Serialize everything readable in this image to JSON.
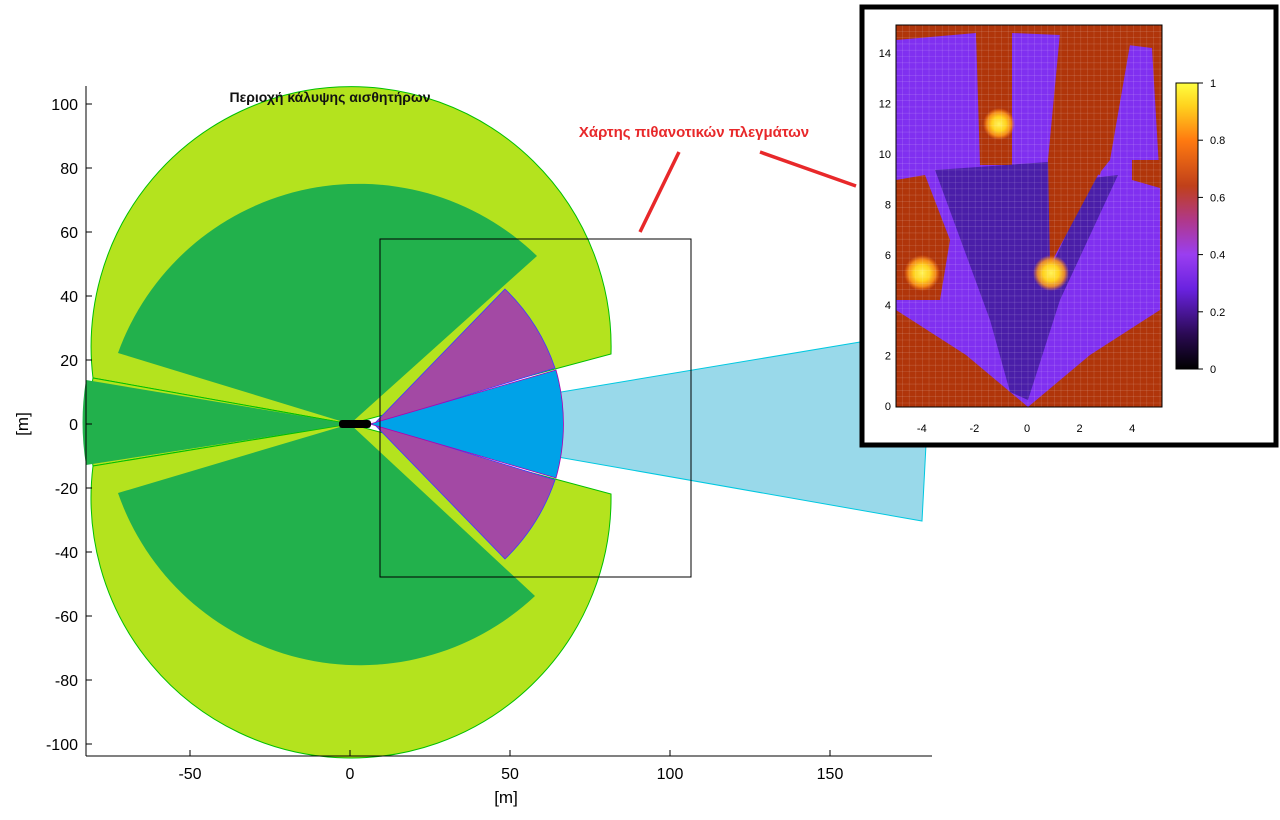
{
  "main_plot": {
    "title": "Περιοχή κάλυψης αισθητήρων",
    "xlabel": "[m]",
    "ylabel": "[m]",
    "x_ticks": [
      -50,
      0,
      50,
      100,
      150
    ],
    "y_ticks": [
      100,
      80,
      60,
      40,
      20,
      0,
      -20,
      -40,
      -60,
      -80,
      -100
    ]
  },
  "annotation": {
    "label": "Χάρτης πιθανοτικών πλεγμάτων",
    "color": "#e8282a"
  },
  "inset": {
    "x_ticks": [
      -4,
      -2,
      0,
      2,
      4
    ],
    "y_ticks": [
      0,
      2,
      4,
      6,
      8,
      10,
      12,
      14
    ],
    "colorbar_ticks": [
      "1",
      "0.8",
      "0.6",
      "0.4",
      "0.2",
      "0"
    ]
  },
  "colors": {
    "outer_ring": "#b4e31e",
    "inner_green": "#22b14c",
    "purple_sector": "#a349a4",
    "blue_sector": "#00a2e8",
    "blue_beam": "#99d9ea",
    "heat_high": "#b0350a",
    "heat_mid": "#8030f0",
    "heat_low": "#4a1ea8",
    "hot_spot": "#ffe020"
  }
}
